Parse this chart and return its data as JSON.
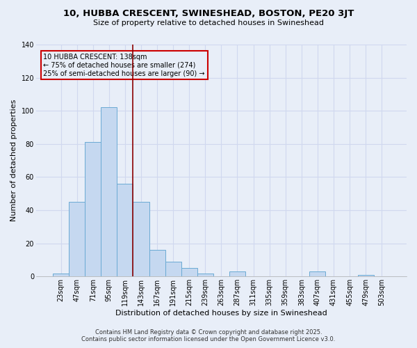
{
  "title_line1": "10, HUBBA CRESCENT, SWINESHEAD, BOSTON, PE20 3JT",
  "title_line2": "Size of property relative to detached houses in Swineshead",
  "xlabel": "Distribution of detached houses by size in Swineshead",
  "ylabel": "Number of detached properties",
  "footer_line1": "Contains HM Land Registry data © Crown copyright and database right 2025.",
  "footer_line2": "Contains public sector information licensed under the Open Government Licence v3.0.",
  "annotation_line1": "10 HUBBA CRESCENT: 138sqm",
  "annotation_line2": "← 75% of detached houses are smaller (274)",
  "annotation_line3": "25% of semi-detached houses are larger (90) →",
  "categories": [
    "23sqm",
    "47sqm",
    "71sqm",
    "95sqm",
    "119sqm",
    "143sqm",
    "167sqm",
    "191sqm",
    "215sqm",
    "239sqm",
    "263sqm",
    "287sqm",
    "311sqm",
    "335sqm",
    "359sqm",
    "383sqm",
    "407sqm",
    "431sqm",
    "455sqm",
    "479sqm",
    "503sqm"
  ],
  "values": [
    2,
    45,
    81,
    102,
    56,
    45,
    16,
    9,
    5,
    2,
    0,
    3,
    0,
    0,
    0,
    0,
    3,
    0,
    0,
    1,
    0
  ],
  "bar_color": "#c5d8f0",
  "bar_edge_color": "#6aaad4",
  "vline_color": "#8b0000",
  "vline_x": 4.5,
  "annotation_box_edge_color": "#cc0000",
  "background_color": "#e8eef8",
  "grid_color": "#d0d8ef",
  "ylim": [
    0,
    140
  ],
  "yticks": [
    0,
    20,
    40,
    60,
    80,
    100,
    120,
    140
  ],
  "title_fontsize": 9.5,
  "subtitle_fontsize": 8,
  "tick_fontsize": 7,
  "ylabel_fontsize": 8,
  "xlabel_fontsize": 8,
  "annotation_fontsize": 7,
  "footer_fontsize": 6
}
